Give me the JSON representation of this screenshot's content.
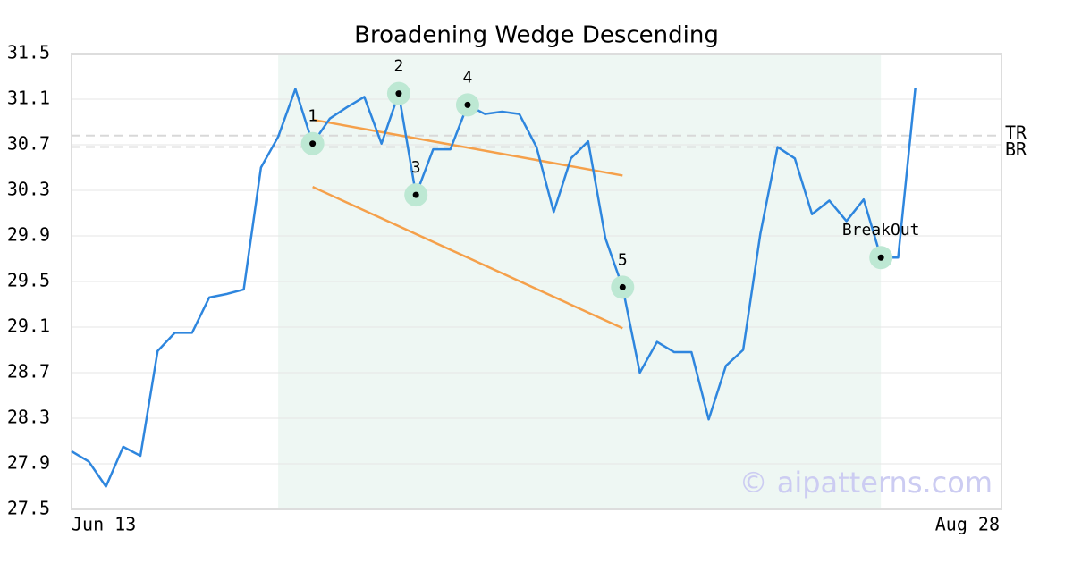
{
  "chart_data": {
    "type": "line",
    "title": "Broadening Wedge Descending",
    "categories": [
      "Jun 13",
      null,
      null,
      null,
      null,
      null,
      null,
      null,
      null,
      null,
      null,
      null,
      null,
      null,
      null,
      null,
      null,
      null,
      null,
      null,
      null,
      null,
      null,
      null,
      null,
      null,
      null,
      null,
      null,
      null,
      null,
      null,
      null,
      null,
      null,
      null,
      null,
      null,
      null,
      null,
      null,
      null,
      null,
      null,
      null,
      null,
      null,
      null,
      null,
      null,
      null,
      null,
      null,
      null,
      "Aug 28"
    ],
    "color": "#2e86de",
    "values": [
      28.01,
      27.92,
      27.7,
      28.05,
      27.97,
      28.89,
      29.05,
      29.05,
      29.36,
      29.39,
      29.43,
      30.5,
      30.77,
      31.19,
      30.71,
      30.93,
      31.03,
      31.12,
      30.71,
      31.15,
      30.26,
      30.66,
      30.66,
      31.05,
      30.97,
      30.99,
      30.97,
      30.68,
      30.11,
      30.58,
      30.73,
      29.88,
      29.45,
      28.7,
      28.97,
      28.88,
      28.88,
      28.29,
      28.76,
      28.9,
      29.92,
      30.68,
      30.58,
      30.09,
      30.21,
      30.03,
      30.22,
      29.71,
      29.71,
      31.2,
      null,
      null,
      null,
      null,
      null
    ],
    "point_labels": [
      null,
      null,
      null,
      null,
      null,
      null,
      null,
      null,
      null,
      null,
      null,
      null,
      null,
      null,
      "1",
      null,
      null,
      null,
      null,
      "2",
      "3",
      null,
      null,
      "4",
      null,
      null,
      null,
      null,
      null,
      null,
      null,
      null,
      "5",
      null,
      null,
      null,
      null,
      null,
      null,
      null,
      null,
      null,
      null,
      null,
      null,
      null,
      null,
      "BreakOut",
      null,
      null,
      null,
      null,
      null,
      null,
      null
    ],
    "trend_lines": [
      {
        "color": "#f5a04a",
        "x": [
          14,
          32
        ],
        "values": [
          30.92,
          30.43
        ]
      },
      {
        "color": "#f5a04a",
        "x": [
          14,
          32
        ],
        "values": [
          30.33,
          29.09
        ]
      }
    ],
    "levels": [
      {
        "label": "TR",
        "value": 30.78
      },
      {
        "label": "BR",
        "value": 30.68
      }
    ],
    "highlight_range": [
      12,
      47
    ],
    "ylim": [
      27.5,
      31.5
    ],
    "yticks": [
      27.5,
      27.9,
      28.3,
      28.7,
      29.1,
      29.5,
      29.9,
      30.3,
      30.7,
      31.1,
      31.5
    ],
    "grid": true,
    "watermark": "© aipatterns.com"
  }
}
